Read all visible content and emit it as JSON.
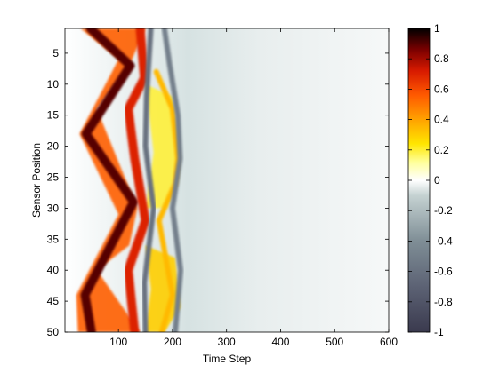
{
  "chart_data": {
    "type": "heatmap",
    "title": "",
    "xlabel": "Time Step",
    "ylabel": "Sensor Position",
    "xlim": [
      1,
      600
    ],
    "ylim": [
      1,
      50
    ],
    "y_reversed": true,
    "x_ticks": [
      100,
      200,
      300,
      400,
      500,
      600
    ],
    "y_ticks": [
      5,
      10,
      15,
      20,
      25,
      30,
      35,
      40,
      45,
      50
    ],
    "x_tick_labels": [
      "100",
      "200",
      "300",
      "400",
      "500",
      "600"
    ],
    "y_tick_labels": [
      "5",
      "10",
      "15",
      "20",
      "25",
      "30",
      "35",
      "40",
      "45",
      "50"
    ],
    "colorbar": {
      "clim": [
        -1,
        1
      ],
      "ticks": [
        1,
        0.8,
        0.6,
        0.4,
        0.2,
        0,
        -0.2,
        -0.4,
        -0.6,
        -0.8,
        -1
      ],
      "tick_labels": [
        "1",
        "0.8",
        "0.6",
        "0.4",
        "0.2",
        "0",
        "-0.2",
        "-0.4",
        "-0.6",
        "-0.8",
        "-1"
      ],
      "colormap": "hot (positive) / bone (negative), diverging through white at 0"
    },
    "grid": false,
    "description_of_field": "wave fronts reflecting between sensor positions; strong positive band (0.6-1) zig-zagging from time step ~40 to ~140, peak ridges near t~130 at positions 5 and 30; secondary positive ridges around t~180 and t~210; negative trough bands (-0.4 to -0.8) near t~150 and t~200; field decays to ~-0.1 beyond t~220",
    "ridges": [
      {
        "name": "positive-main",
        "value": 0.9,
        "points": [
          [
            48,
            1
          ],
          [
            122,
            7
          ],
          [
            40,
            18
          ],
          [
            128,
            29
          ],
          [
            38,
            44
          ],
          [
            50,
            50
          ]
        ]
      },
      {
        "name": "positive-inner",
        "value": 0.7,
        "points": [
          [
            140,
            1
          ],
          [
            148,
            9
          ],
          [
            118,
            14
          ],
          [
            130,
            22
          ],
          [
            150,
            32
          ],
          [
            118,
            40
          ],
          [
            130,
            50
          ]
        ]
      },
      {
        "name": "negative-inner",
        "value": -0.6,
        "points": [
          [
            160,
            1
          ],
          [
            152,
            12
          ],
          [
            150,
            20
          ],
          [
            165,
            30
          ],
          [
            148,
            42
          ],
          [
            150,
            50
          ]
        ]
      },
      {
        "name": "positive-outer",
        "value": 0.35,
        "points": [
          [
            170,
            8
          ],
          [
            200,
            14
          ],
          [
            210,
            22
          ],
          [
            205,
            26
          ],
          [
            175,
            32
          ],
          [
            200,
            44
          ],
          [
            180,
            50
          ]
        ]
      },
      {
        "name": "negative-outer",
        "value": -0.5,
        "points": [
          [
            185,
            1
          ],
          [
            195,
            7
          ],
          [
            210,
            15
          ],
          [
            214,
            22
          ],
          [
            200,
            30
          ],
          [
            215,
            40
          ],
          [
            205,
            50
          ]
        ]
      }
    ]
  }
}
